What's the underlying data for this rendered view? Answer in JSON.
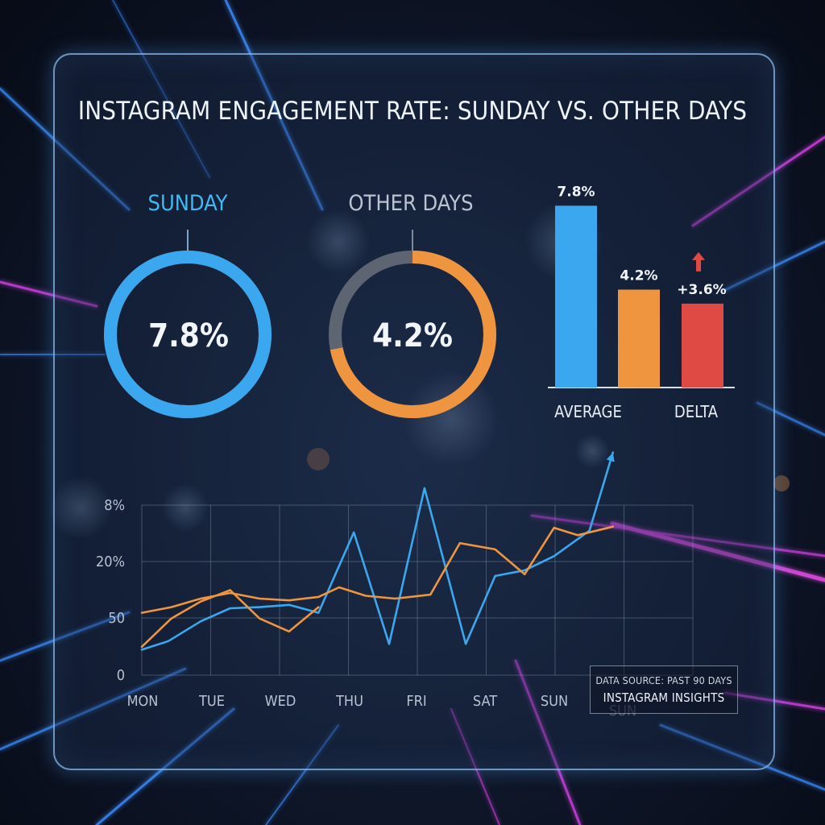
{
  "title": "INSTAGRAM ENGAGEMENT RATE: SUNDAY VS. OTHER DAYS",
  "colors": {
    "sunday": "#3aa7ee",
    "other_days": "#f0953f",
    "delta": "#e04a45",
    "ring_track": "#5d6572"
  },
  "chart_data": [
    {
      "type": "donut",
      "label": "SUNDAY",
      "value_label": "7.8%",
      "filled_fraction": 1.0,
      "color": "#3aa7ee"
    },
    {
      "type": "donut",
      "label": "OTHER DAYS",
      "value_label": "4.2%",
      "filled_fraction": 0.72,
      "color": "#f0953f"
    },
    {
      "type": "bar",
      "categories": [
        "AVERAGE",
        "DELTA"
      ],
      "bars": [
        {
          "value": 7.8,
          "label": "7.8%",
          "color": "#3aa7ee"
        },
        {
          "value": 4.2,
          "label": "4.2%",
          "color": "#f0953f"
        },
        {
          "value": 3.6,
          "label": "+3.6%",
          "color": "#e04a45",
          "arrow": "up"
        }
      ],
      "ylim": [
        0,
        8.4
      ]
    },
    {
      "type": "line",
      "x": [
        "MON",
        "TUE",
        "WED",
        "THU",
        "FRI",
        "SAT",
        "SUN"
      ],
      "x_extra_label": "SUN",
      "y_ticks": [
        "0",
        "50",
        "20%",
        "8%"
      ],
      "ylim": [
        0,
        3
      ],
      "grid": true,
      "series": [
        {
          "color": "#3aa7ee",
          "points": [
            [
              0,
              0.45
            ],
            [
              0.45,
              0.6
            ],
            [
              1.0,
              0.95
            ],
            [
              1.5,
              1.18
            ],
            [
              2.0,
              1.2
            ],
            [
              2.5,
              1.24
            ],
            [
              3.0,
              1.1
            ],
            [
              3.6,
              2.52
            ],
            [
              4.2,
              0.55
            ],
            [
              4.8,
              3.3
            ],
            [
              5.5,
              0.55
            ],
            [
              6.0,
              1.75
            ],
            [
              6.5,
              1.85
            ],
            [
              7.0,
              2.1
            ],
            [
              7.6,
              2.55
            ],
            [
              8.0,
              3.93
            ]
          ]
        },
        {
          "color": "#f0953f",
          "points": [
            [
              0,
              1.1
            ],
            [
              0.5,
              1.2
            ],
            [
              1.0,
              1.35
            ],
            [
              1.5,
              1.45
            ],
            [
              2.0,
              1.35
            ],
            [
              2.5,
              1.32
            ],
            [
              3.0,
              1.38
            ],
            [
              3.35,
              1.55
            ],
            [
              3.8,
              1.4
            ],
            [
              4.3,
              1.35
            ],
            [
              4.9,
              1.42
            ],
            [
              5.4,
              2.33
            ],
            [
              6.0,
              2.22
            ],
            [
              6.5,
              1.78
            ],
            [
              7.0,
              2.6
            ],
            [
              7.4,
              2.47
            ],
            [
              8.0,
              2.62
            ]
          ]
        },
        {
          "color": "#f0953f",
          "points": [
            [
              0,
              0.5
            ],
            [
              0.5,
              1.0
            ],
            [
              1.0,
              1.3
            ],
            [
              1.5,
              1.5
            ],
            [
              2.0,
              1.0
            ],
            [
              2.5,
              0.77
            ],
            [
              3.0,
              1.2
            ]
          ]
        }
      ]
    }
  ],
  "source": {
    "line1": "DATA SOURCE: PAST 90 DAYS",
    "line2": "INSTAGRAM INSIGHTS"
  }
}
